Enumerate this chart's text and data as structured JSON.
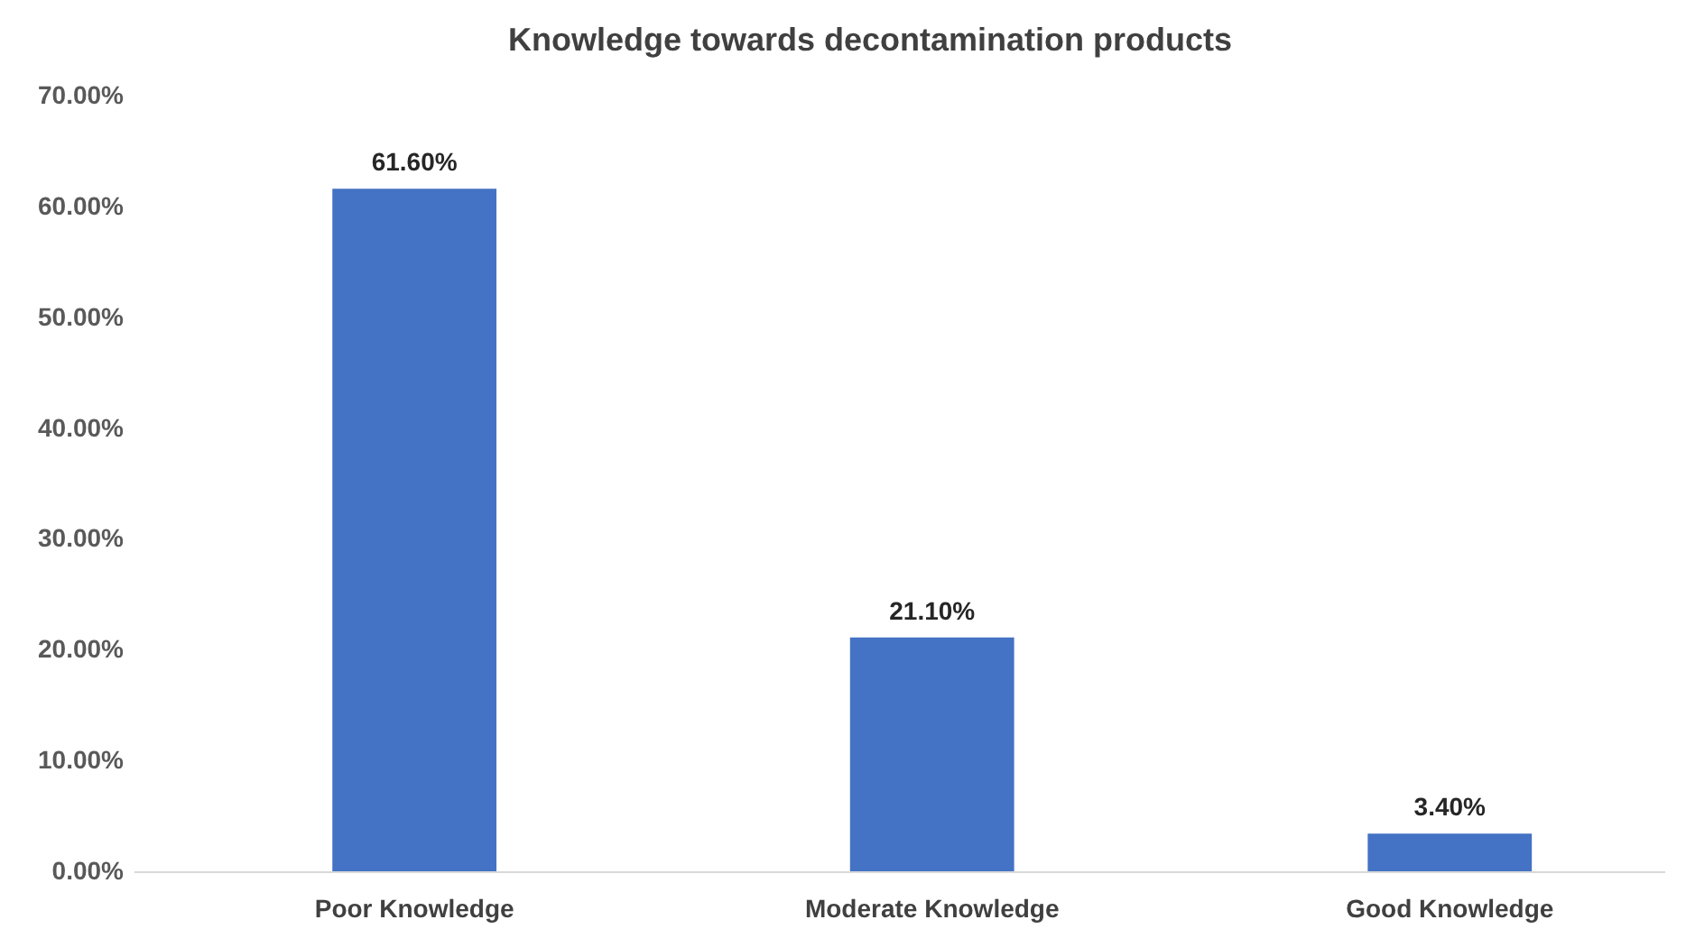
{
  "chart_data": {
    "type": "bar",
    "title": "Knowledge towards decontamination products",
    "categories": [
      "Poor Knowledge",
      "Moderate Knowledge",
      "Good Knowledge"
    ],
    "values": [
      61.6,
      21.1,
      3.4
    ],
    "value_labels": [
      "61.60%",
      "21.10%",
      "3.40%"
    ],
    "color": "#4472c4",
    "ylim": [
      0,
      70
    ],
    "yticks": [
      {
        "value": 0,
        "label": "0.00%"
      },
      {
        "value": 10,
        "label": "10.00%"
      },
      {
        "value": 20,
        "label": "20.00%"
      },
      {
        "value": 30,
        "label": "30.00%"
      },
      {
        "value": 40,
        "label": "40.00%"
      },
      {
        "value": 50,
        "label": "50.00%"
      },
      {
        "value": 60,
        "label": "60.00%"
      },
      {
        "value": 70,
        "label": "70.00%"
      }
    ]
  }
}
